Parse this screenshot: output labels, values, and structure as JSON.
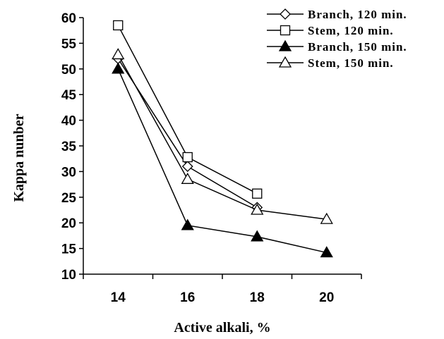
{
  "chart_data": {
    "type": "line",
    "title": "",
    "xlabel": "Active alkali, %",
    "ylabel": "Kappa nunber",
    "x": [
      14,
      16,
      18,
      20
    ],
    "xlim": [
      13,
      21
    ],
    "ylim": [
      10,
      60
    ],
    "yticks": [
      10,
      15,
      20,
      25,
      30,
      35,
      40,
      45,
      50,
      55,
      60
    ],
    "grid": false,
    "legend_position": "top-right",
    "series": [
      {
        "name": "Branch, 120 min.",
        "marker": "diamond-open",
        "color": "#000000",
        "x": [
          14,
          16,
          18
        ],
        "values": [
          52,
          31,
          23
        ]
      },
      {
        "name": "Stem, 120 min.",
        "marker": "square-open",
        "color": "#000000",
        "x": [
          14,
          16,
          18
        ],
        "values": [
          58.5,
          32.8,
          25.7
        ]
      },
      {
        "name": "Branch, 150 min.",
        "marker": "triangle-filled",
        "color": "#000000",
        "x": [
          14,
          16,
          18,
          20
        ],
        "values": [
          50,
          19.5,
          17.3,
          14.2
        ]
      },
      {
        "name": "Stem, 150 min.",
        "marker": "triangle-open",
        "color": "#000000",
        "x": [
          14,
          16,
          18,
          20
        ],
        "values": [
          52.8,
          28.5,
          22.5,
          20.7
        ]
      }
    ]
  }
}
